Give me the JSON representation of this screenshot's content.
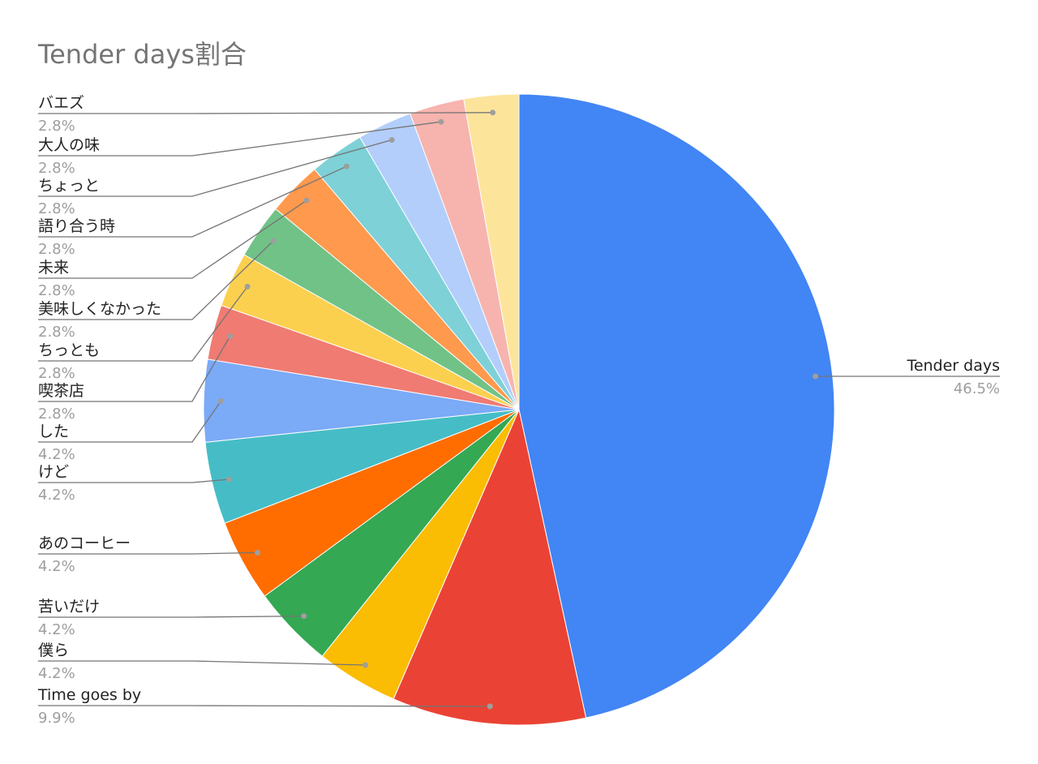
{
  "chart_data": {
    "type": "pie",
    "title": "Tender days割合",
    "legend": "none",
    "slices": [
      {
        "label": "Tender days",
        "percent_label": "46.5%",
        "value": 46.5,
        "color": "#4285f4"
      },
      {
        "label": "Time goes by",
        "percent_label": "9.9%",
        "value": 9.9,
        "color": "#ea4335"
      },
      {
        "label": "僕ら",
        "percent_label": "4.2%",
        "value": 4.2,
        "color": "#fbbc04"
      },
      {
        "label": "苦いだけ",
        "percent_label": "4.2%",
        "value": 4.2,
        "color": "#34a853"
      },
      {
        "label": "あのコーヒー",
        "percent_label": "4.2%",
        "value": 4.2,
        "color": "#ff6d01"
      },
      {
        "label": "けど",
        "percent_label": "4.2%",
        "value": 4.2,
        "color": "#46bdc6"
      },
      {
        "label": "した",
        "percent_label": "4.2%",
        "value": 4.2,
        "color": "#7baaf7"
      },
      {
        "label": "喫茶店",
        "percent_label": "2.8%",
        "value": 2.8,
        "color": "#f07b72"
      },
      {
        "label": "ちっとも",
        "percent_label": "2.8%",
        "value": 2.8,
        "color": "#fcd04f"
      },
      {
        "label": "美味しくなかった",
        "percent_label": "2.8%",
        "value": 2.8,
        "color": "#71c287"
      },
      {
        "label": "未来",
        "percent_label": "2.8%",
        "value": 2.8,
        "color": "#ff994d"
      },
      {
        "label": "語り合う時",
        "percent_label": "2.8%",
        "value": 2.8,
        "color": "#7ed1d7"
      },
      {
        "label": "ちょっと",
        "percent_label": "2.8%",
        "value": 2.8,
        "color": "#b3cefb"
      },
      {
        "label": "大人の味",
        "percent_label": "2.8%",
        "value": 2.8,
        "color": "#f7b4ae"
      },
      {
        "label": "バエズ",
        "percent_label": "2.8%",
        "value": 2.8,
        "color": "#fde49b"
      }
    ]
  }
}
